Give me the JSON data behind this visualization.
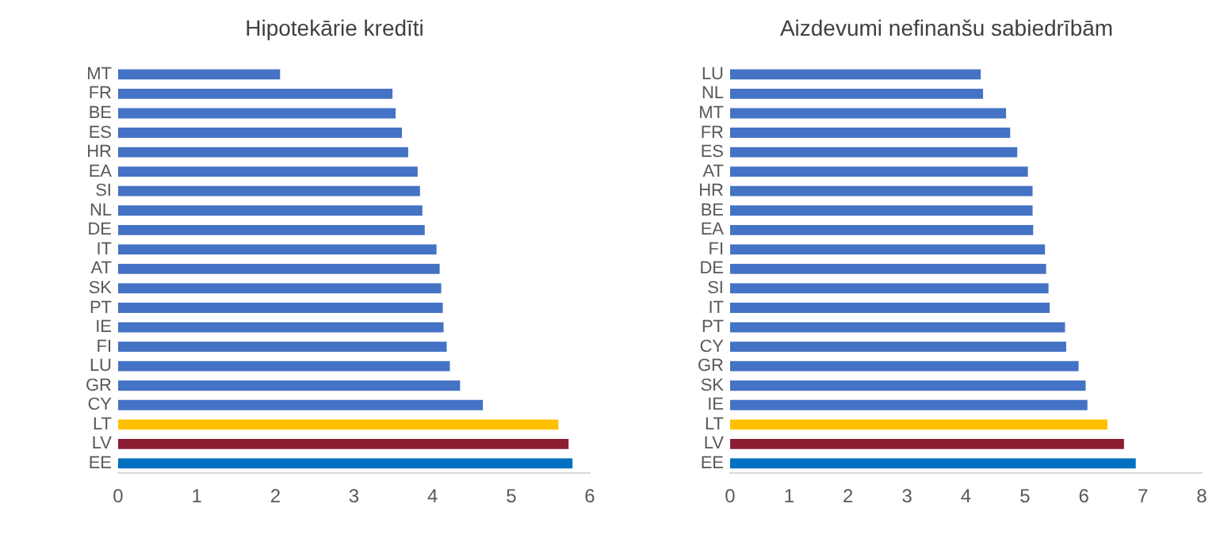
{
  "chart_data": [
    {
      "type": "bar",
      "orientation": "horizontal",
      "title": "Hipotekārie kredīti",
      "categories": [
        "MT",
        "FR",
        "BE",
        "ES",
        "HR",
        "EA",
        "SI",
        "NL",
        "DE",
        "IT",
        "AT",
        "SK",
        "PT",
        "IE",
        "FI",
        "LU",
        "GR",
        "CY",
        "LT",
        "LV",
        "EE"
      ],
      "values": [
        2.06,
        3.49,
        3.53,
        3.61,
        3.69,
        3.81,
        3.84,
        3.87,
        3.9,
        4.05,
        4.09,
        4.11,
        4.13,
        4.14,
        4.18,
        4.22,
        4.35,
        4.64,
        5.6,
        5.73,
        5.78
      ],
      "colors": [
        "#4472c4",
        "#4472c4",
        "#4472c4",
        "#4472c4",
        "#4472c4",
        "#4472c4",
        "#4472c4",
        "#4472c4",
        "#4472c4",
        "#4472c4",
        "#4472c4",
        "#4472c4",
        "#4472c4",
        "#4472c4",
        "#4472c4",
        "#4472c4",
        "#4472c4",
        "#4472c4",
        "#ffc000",
        "#8b1e32",
        "#0070c0"
      ],
      "xlim": [
        0,
        6
      ],
      "xticks": [
        0,
        1,
        2,
        3,
        4,
        5,
        6
      ],
      "grid": false,
      "legend": false
    },
    {
      "type": "bar",
      "orientation": "horizontal",
      "title": "Aizdevumi nefinanšu sabiedrībām",
      "categories": [
        "LU",
        "NL",
        "MT",
        "FR",
        "ES",
        "AT",
        "HR",
        "BE",
        "EA",
        "FI",
        "DE",
        "SI",
        "IT",
        "PT",
        "CY",
        "GR",
        "SK",
        "IE",
        "LT",
        "LV",
        "EE"
      ],
      "values": [
        4.25,
        4.29,
        4.68,
        4.75,
        4.87,
        5.05,
        5.13,
        5.13,
        5.14,
        5.34,
        5.36,
        5.4,
        5.42,
        5.68,
        5.7,
        5.91,
        6.03,
        6.06,
        6.4,
        6.68,
        6.88
      ],
      "colors": [
        "#4472c4",
        "#4472c4",
        "#4472c4",
        "#4472c4",
        "#4472c4",
        "#4472c4",
        "#4472c4",
        "#4472c4",
        "#4472c4",
        "#4472c4",
        "#4472c4",
        "#4472c4",
        "#4472c4",
        "#4472c4",
        "#4472c4",
        "#4472c4",
        "#4472c4",
        "#4472c4",
        "#ffc000",
        "#8b1e32",
        "#0070c0"
      ],
      "xlim": [
        0,
        8
      ],
      "xticks": [
        0,
        1,
        2,
        3,
        4,
        5,
        6,
        7,
        8
      ],
      "grid": false,
      "legend": false
    }
  ]
}
